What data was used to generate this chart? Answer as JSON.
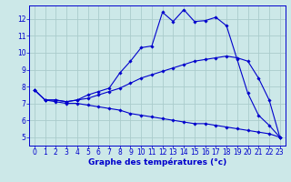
{
  "xlabel": "Graphe des températures (°c)",
  "background_color": "#cce8e8",
  "grid_color": "#aacccc",
  "line_color": "#0000cc",
  "xlim": [
    -0.5,
    23.5
  ],
  "ylim": [
    4.5,
    12.8
  ],
  "xticks": [
    0,
    1,
    2,
    3,
    4,
    5,
    6,
    7,
    8,
    9,
    10,
    11,
    12,
    13,
    14,
    15,
    16,
    17,
    18,
    19,
    20,
    21,
    22,
    23
  ],
  "yticks": [
    5,
    6,
    7,
    8,
    9,
    10,
    11,
    12
  ],
  "curve1_x": [
    0,
    1,
    2,
    3,
    4,
    5,
    6,
    7,
    8,
    9,
    10,
    11,
    12,
    13,
    14,
    15,
    16,
    17,
    18,
    19,
    20,
    21,
    22,
    23
  ],
  "curve1_y": [
    7.8,
    7.2,
    7.2,
    7.1,
    7.2,
    7.5,
    7.7,
    7.9,
    8.8,
    9.5,
    10.3,
    10.4,
    12.4,
    11.85,
    12.55,
    11.85,
    11.9,
    12.1,
    11.6,
    9.6,
    7.6,
    6.3,
    5.7,
    5.0
  ],
  "curve2_x": [
    0,
    1,
    2,
    3,
    4,
    5,
    6,
    7,
    8,
    9,
    10,
    11,
    12,
    13,
    14,
    15,
    16,
    17,
    18,
    19,
    20,
    21,
    22,
    23
  ],
  "curve2_y": [
    7.8,
    7.2,
    7.2,
    7.1,
    7.2,
    7.3,
    7.5,
    7.7,
    7.9,
    8.2,
    8.5,
    8.7,
    8.9,
    9.1,
    9.3,
    9.5,
    9.6,
    9.7,
    9.8,
    9.7,
    9.5,
    8.5,
    7.2,
    5.0
  ],
  "curve3_x": [
    0,
    1,
    2,
    3,
    4,
    5,
    6,
    7,
    8,
    9,
    10,
    11,
    12,
    13,
    14,
    15,
    16,
    17,
    18,
    19,
    20,
    21,
    22,
    23
  ],
  "curve3_y": [
    7.8,
    7.2,
    7.1,
    7.0,
    7.0,
    6.9,
    6.8,
    6.7,
    6.6,
    6.4,
    6.3,
    6.2,
    6.1,
    6.0,
    5.9,
    5.8,
    5.8,
    5.7,
    5.6,
    5.5,
    5.4,
    5.3,
    5.2,
    5.0
  ],
  "xlabel_fontsize": 6.5,
  "tick_fontsize": 5.5,
  "linewidth": 0.8,
  "markersize": 1.8
}
